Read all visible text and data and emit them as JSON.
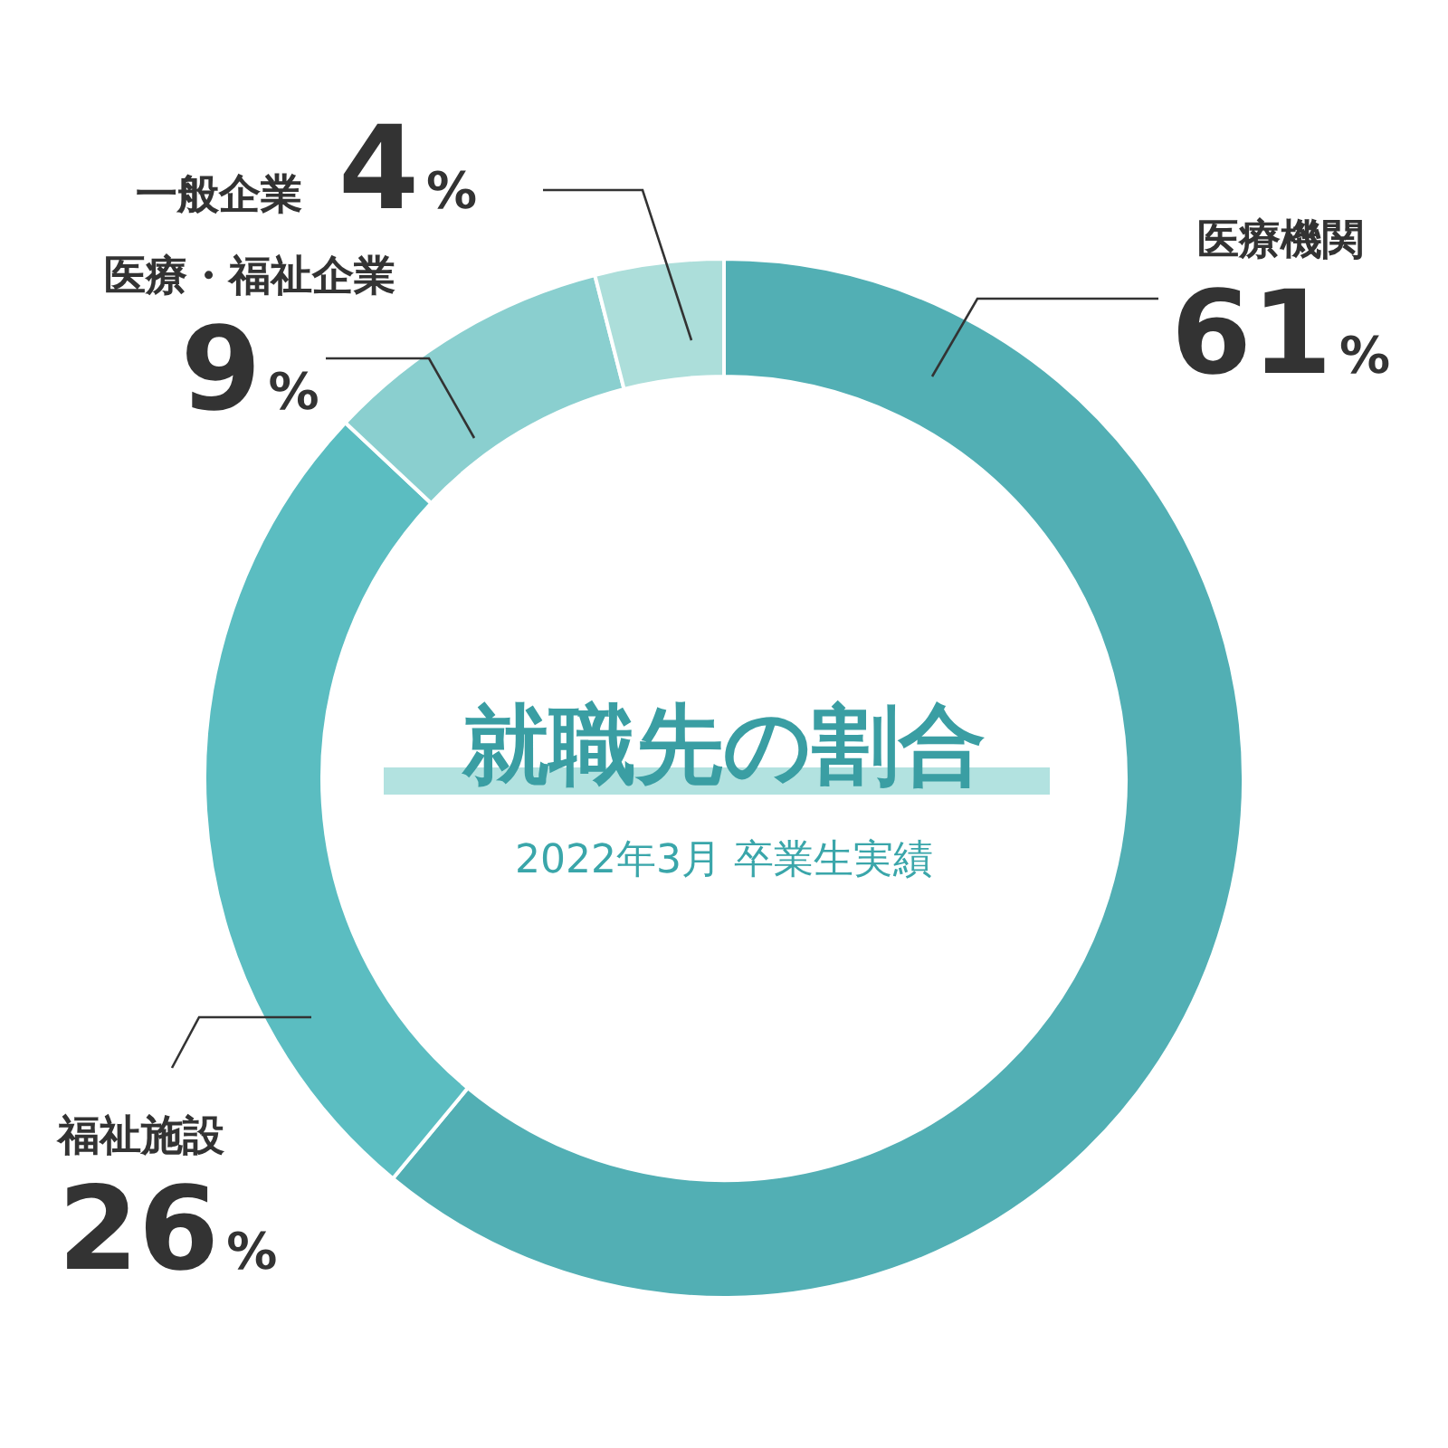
{
  "chart_data": {
    "type": "donut",
    "title": "就職先の割合",
    "subtitle": "2022年3月 卒業生実績",
    "categories": [
      "医療機関",
      "福祉施設",
      "医療・福祉企業",
      "一般企業"
    ],
    "values": [
      61,
      26,
      9,
      4
    ],
    "colors": [
      "#52afb4",
      "#5bbdc1",
      "#8acfcf",
      "#acdeda"
    ],
    "value_labels": [
      "61%",
      "26%",
      "9%",
      "4%"
    ]
  }
}
